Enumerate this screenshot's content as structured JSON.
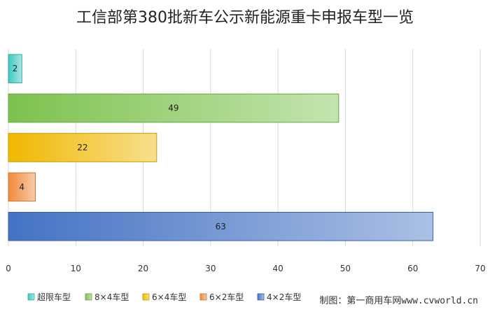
{
  "chart_data": {
    "type": "bar",
    "orientation": "horizontal",
    "title": "工信部第380批新车公示新能源重卡申报车型一览",
    "categories": [
      "超限车型",
      "8×4车型",
      "6×4车型",
      "6×2车型",
      "4×2车型"
    ],
    "values": [
      2,
      49,
      22,
      4,
      63
    ],
    "colors": [
      "#3ec8c0",
      "#7cc24e",
      "#f0b800",
      "#f08a3c",
      "#4472c4"
    ],
    "xlim": [
      0,
      70
    ],
    "xticks": [
      0,
      10,
      20,
      30,
      40,
      50,
      60,
      70
    ],
    "grid": true,
    "legend_position": "bottom-left"
  },
  "source_note": "制图：第一商用车网www.cvworld.cn"
}
